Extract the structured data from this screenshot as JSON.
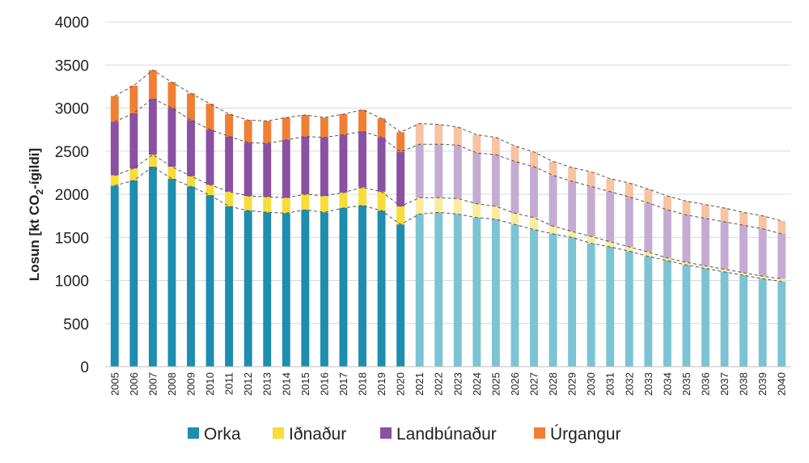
{
  "chart_data": {
    "type": "bar",
    "stacked": true,
    "title": "",
    "xlabel": "",
    "ylabel": {
      "main": "Losun  [kt CO",
      "sub": "2",
      "tail": "-ígildi]"
    },
    "ylim": [
      0,
      4000
    ],
    "yticks": [
      0,
      500,
      1000,
      1500,
      2000,
      2500,
      3000,
      3500,
      4000
    ],
    "grid": true,
    "legend_position": "bottom",
    "projection_start": "2021",
    "categories": [
      "2005",
      "2006",
      "2007",
      "2008",
      "2009",
      "2010",
      "2011",
      "2012",
      "2013",
      "2014",
      "2015",
      "2016",
      "2017",
      "2018",
      "2019",
      "2020",
      "2021",
      "2022",
      "2023",
      "2024",
      "2025",
      "2026",
      "2027",
      "2028",
      "2029",
      "2030",
      "2031",
      "2032",
      "2033",
      "2034",
      "2035",
      "2036",
      "2037",
      "2038",
      "2039",
      "2040"
    ],
    "series": [
      {
        "name": "Orka",
        "color": "#1d8db0",
        "projection_color": "#7cc3d4",
        "values": [
          2100,
          2160,
          2320,
          2180,
          2090,
          1990,
          1860,
          1810,
          1790,
          1780,
          1820,
          1790,
          1840,
          1870,
          1810,
          1650,
          1770,
          1790,
          1770,
          1730,
          1710,
          1650,
          1590,
          1540,
          1500,
          1430,
          1390,
          1340,
          1280,
          1230,
          1180,
          1140,
          1100,
          1060,
          1020,
          990
        ]
      },
      {
        "name": "Iðnaður",
        "color": "#f7dc3a",
        "projection_color": "#fbeb9c",
        "values": [
          120,
          140,
          140,
          140,
          120,
          120,
          170,
          170,
          180,
          180,
          180,
          190,
          180,
          210,
          220,
          210,
          190,
          170,
          180,
          160,
          150,
          130,
          140,
          90,
          70,
          80,
          60,
          50,
          50,
          30,
          30,
          30,
          30,
          30,
          30,
          30
        ]
      },
      {
        "name": "Landbúnaður",
        "color": "#8a50a2",
        "projection_color": "#c5abd1",
        "values": [
          620,
          640,
          650,
          680,
          650,
          640,
          640,
          620,
          620,
          670,
          670,
          680,
          670,
          650,
          630,
          630,
          620,
          620,
          620,
          590,
          600,
          600,
          590,
          590,
          580,
          580,
          580,
          580,
          570,
          560,
          550,
          550,
          550,
          550,
          550,
          520
        ]
      },
      {
        "name": "Úrgangur",
        "color": "#f07f35",
        "projection_color": "#f7c3a2",
        "values": [
          300,
          320,
          330,
          300,
          310,
          300,
          260,
          260,
          260,
          260,
          250,
          230,
          240,
          250,
          220,
          230,
          240,
          230,
          210,
          210,
          200,
          180,
          170,
          160,
          160,
          170,
          150,
          160,
          160,
          160,
          160,
          160,
          160,
          150,
          150,
          150
        ]
      }
    ]
  }
}
